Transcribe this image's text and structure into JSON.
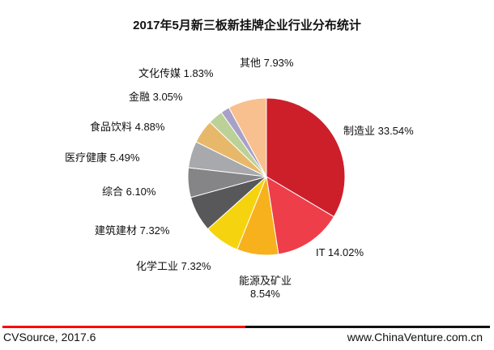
{
  "chart_data": {
    "type": "pie",
    "title": "2017年5月新三板新挂牌企业行业分布统计",
    "slices": [
      {
        "label": "制造业",
        "value": 33.54,
        "text": "制造业 33.54%",
        "color": "#cc1f2a"
      },
      {
        "label": "IT",
        "value": 14.02,
        "text": "IT 14.02%",
        "color": "#ee3e4a"
      },
      {
        "label": "能源及矿业",
        "value": 8.54,
        "text": "能源及矿业",
        "text2": "8.54%",
        "color": "#f6b11c"
      },
      {
        "label": "化学工业",
        "value": 7.32,
        "text": "化学工业 7.32%",
        "color": "#f5d40f"
      },
      {
        "label": "建筑建材",
        "value": 7.32,
        "text": "建筑建材 7.32%",
        "color": "#58585b"
      },
      {
        "label": "综合",
        "value": 6.1,
        "text": "综合 6.10%",
        "color": "#858588"
      },
      {
        "label": "医疗健康",
        "value": 5.49,
        "text": "医疗健康 5.49%",
        "color": "#a7a9ac"
      },
      {
        "label": "食品饮料",
        "value": 4.88,
        "text": "食品饮料 4.88%",
        "color": "#e8b86a"
      },
      {
        "label": "金融",
        "value": 3.05,
        "text": "金融 3.05%",
        "color": "#bcd198"
      },
      {
        "label": "文化传媒",
        "value": 1.83,
        "text": "文化传媒 1.83%",
        "color": "#a9a0c8"
      },
      {
        "label": "其他",
        "value": 7.93,
        "text": "其他 7.93%",
        "color": "#f8c08f"
      }
    ],
    "start": "top",
    "direction": "clockwise",
    "legend": "none"
  },
  "footer": {
    "source": "CVSource, 2017.6",
    "site": "www.ChinaVenture.com.cn",
    "rule_colors": [
      "#ff0000",
      "#111111"
    ]
  }
}
